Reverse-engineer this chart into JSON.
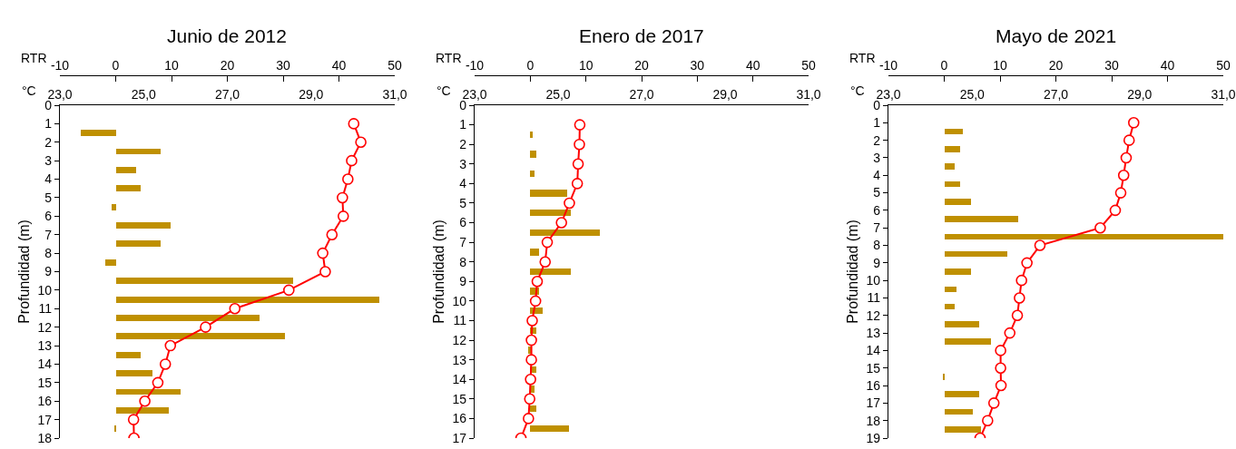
{
  "chart_data": [
    {
      "type": "bar",
      "orientation": "horizontal",
      "title": "Junio de 2012",
      "xlabel": "RTR",
      "x2label": "°C",
      "ylabel": "Profundidad (m)",
      "xlim": [
        -10,
        50
      ],
      "xticks": [
        -10,
        0,
        10,
        20,
        30,
        40,
        50
      ],
      "x2lim": [
        23,
        31
      ],
      "x2ticks": [
        {
          "value": 23,
          "label": "23,0"
        },
        {
          "value": 25,
          "label": "25,0"
        },
        {
          "value": 27,
          "label": "27,0"
        },
        {
          "value": 29,
          "label": "29,0"
        },
        {
          "value": 31,
          "label": "31,0"
        }
      ],
      "ylim": [
        18,
        0
      ],
      "yticks": [
        0,
        1,
        2,
        3,
        4,
        5,
        6,
        7,
        8,
        9,
        10,
        11,
        12,
        13,
        14,
        15,
        16,
        17,
        18
      ],
      "marker": "circle",
      "series": [
        {
          "color": "#bf9000",
          "x": [
            1.5,
            2.5,
            3.5,
            4.5,
            5.5,
            6.5,
            7.5,
            8.5,
            9.5,
            10.5,
            11.5,
            12.5,
            13.5,
            14.5,
            15.5,
            16.5,
            17.5
          ],
          "values": [
            -6.2,
            8.0,
            3.6,
            4.4,
            -0.8,
            9.9,
            8.0,
            -1.8,
            31.8,
            47.2,
            25.7,
            30.3,
            4.4,
            6.6,
            11.7,
            9.5,
            -0.3
          ]
        },
        {
          "type": "line",
          "axis": "x2",
          "color": "#ff0000",
          "x": [
            1,
            2,
            3,
            4,
            5,
            6,
            7,
            8,
            9,
            10,
            11,
            12,
            13,
            14,
            15,
            16,
            17,
            18
          ],
          "values": [
            30.02,
            30.19,
            29.97,
            29.88,
            29.75,
            29.77,
            29.5,
            29.28,
            29.34,
            28.47,
            27.18,
            26.48,
            25.64,
            25.52,
            25.34,
            25.03,
            24.76,
            24.77
          ]
        }
      ]
    },
    {
      "type": "bar",
      "orientation": "horizontal",
      "title": "Enero de 2017",
      "xlabel": "RTR",
      "x2label": "°C",
      "ylabel": "Profundidad (m)",
      "xlim": [
        -10,
        50
      ],
      "xticks": [
        -10,
        0,
        10,
        20,
        30,
        40,
        50
      ],
      "x2lim": [
        23,
        31
      ],
      "x2ticks": [
        {
          "value": 23,
          "label": "23,0"
        },
        {
          "value": 25,
          "label": "25,0"
        },
        {
          "value": 27,
          "label": "27,0"
        },
        {
          "value": 29,
          "label": "29,0"
        },
        {
          "value": 31,
          "label": "31,0"
        }
      ],
      "ylim": [
        17,
        0
      ],
      "yticks": [
        0,
        1,
        2,
        3,
        4,
        5,
        6,
        7,
        8,
        9,
        10,
        11,
        12,
        13,
        14,
        15,
        16,
        17
      ],
      "marker": "circle",
      "series": [
        {
          "color": "#bf9000",
          "x": [
            1.5,
            2.5,
            3.5,
            4.5,
            5.5,
            6.5,
            7.5,
            8.5,
            9.5,
            10.5,
            11.5,
            12.5,
            13.5,
            14.5,
            15.5,
            16.5
          ],
          "values": [
            0.4,
            1.1,
            0.7,
            6.6,
            7.3,
            12.5,
            1.5,
            7.3,
            1.5,
            2.2,
            1.1,
            -0.3,
            1.1,
            0.7,
            1.1,
            6.9
          ]
        },
        {
          "type": "line",
          "axis": "x2",
          "color": "#ff0000",
          "x": [
            1,
            2,
            3,
            4,
            5,
            6,
            7,
            8,
            9,
            10,
            11,
            12,
            13,
            14,
            15,
            16,
            17
          ],
          "values": [
            25.52,
            25.51,
            25.48,
            25.46,
            25.27,
            25.08,
            24.74,
            24.69,
            24.5,
            24.46,
            24.38,
            24.36,
            24.36,
            24.34,
            24.32,
            24.29,
            24.11
          ]
        }
      ]
    },
    {
      "type": "bar",
      "orientation": "horizontal",
      "title": "Mayo de 2021",
      "xlabel": "RTR",
      "x2label": "°C",
      "ylabel": "Profundidad (m)",
      "xlim": [
        -10,
        50
      ],
      "xticks": [
        -10,
        0,
        10,
        20,
        30,
        40,
        50
      ],
      "x2lim": [
        23,
        31
      ],
      "x2ticks": [
        {
          "value": 23,
          "label": "23,0"
        },
        {
          "value": 25,
          "label": "25,0"
        },
        {
          "value": 27,
          "label": "27,0"
        },
        {
          "value": 29,
          "label": "29,0"
        },
        {
          "value": 31,
          "label": "31,0"
        }
      ],
      "ylim": [
        19,
        0
      ],
      "yticks": [
        0,
        1,
        2,
        3,
        4,
        5,
        6,
        7,
        8,
        9,
        10,
        11,
        12,
        13,
        14,
        15,
        16,
        17,
        18,
        19
      ],
      "marker": "circle",
      "series": [
        {
          "color": "#bf9000",
          "x": [
            1.5,
            2.5,
            3.5,
            4.5,
            5.5,
            6.5,
            7.5,
            8.5,
            9.5,
            10.5,
            11.5,
            12.5,
            13.5,
            14.5,
            15.5,
            16.5,
            17.5,
            18.5
          ],
          "values": [
            3.3,
            2.9,
            1.8,
            2.9,
            4.8,
            13.2,
            50.0,
            11.3,
            4.8,
            2.2,
            1.8,
            6.2,
            8.4,
            null,
            -0.3,
            6.2,
            5.1,
            6.6
          ]
        },
        {
          "type": "line",
          "axis": "x2",
          "color": "#ff0000",
          "x": [
            1,
            2,
            3,
            4,
            5,
            6,
            7,
            8,
            9,
            10,
            11,
            12,
            13,
            14,
            15,
            16,
            17,
            18,
            19
          ],
          "values": [
            28.86,
            28.75,
            28.68,
            28.62,
            28.55,
            28.42,
            28.06,
            26.62,
            26.31,
            26.18,
            26.13,
            26.08,
            25.9,
            25.68,
            25.68,
            25.69,
            25.52,
            25.37,
            25.19
          ]
        }
      ]
    }
  ]
}
